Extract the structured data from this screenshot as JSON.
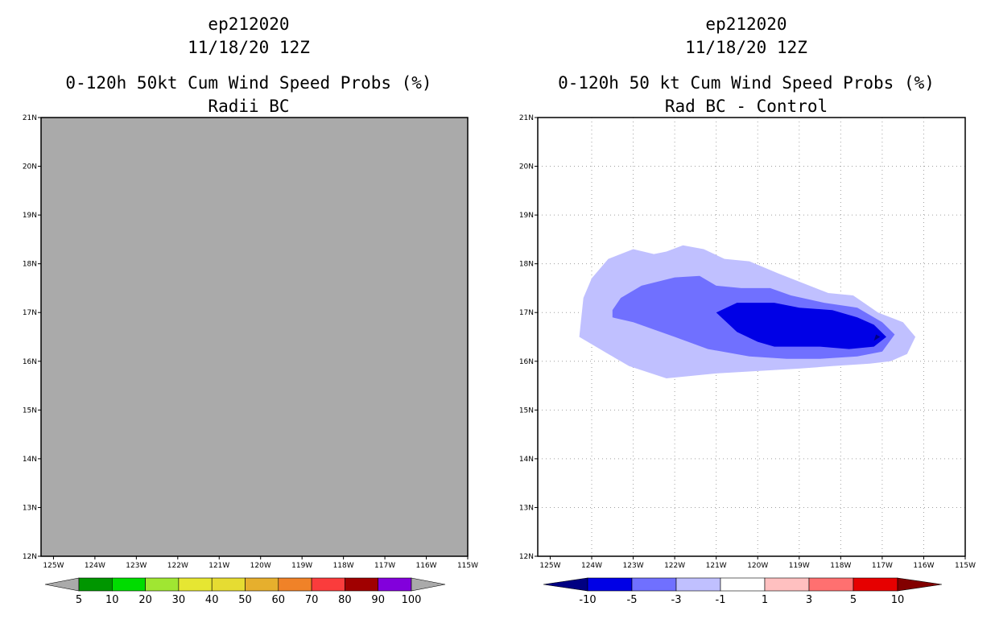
{
  "chart_data": [
    {
      "type": "heatmap",
      "title_lines": [
        "ep212020",
        "11/18/20 12Z",
        "0-120h 50kt Cum Wind Speed Probs (%)",
        "Radii BC"
      ],
      "field_color": "#aaaaaa",
      "xlim": [
        -125.3,
        -115
      ],
      "ylim": [
        12,
        21
      ],
      "x_ticks": [
        -125,
        -124,
        -123,
        -122,
        -121,
        -120,
        -119,
        -118,
        -117,
        -116,
        -115
      ],
      "x_tick_labels": [
        "125W",
        "124W",
        "123W",
        "122W",
        "121W",
        "120W",
        "119W",
        "118W",
        "117W",
        "116W",
        "115W"
      ],
      "y_ticks": [
        12,
        13,
        14,
        15,
        16,
        17,
        18,
        19,
        20,
        21
      ],
      "y_tick_labels": [
        "12N",
        "13N",
        "14N",
        "15N",
        "16N",
        "17N",
        "18N",
        "19N",
        "20N",
        "21N"
      ],
      "grid": false,
      "colorbar": {
        "levels": [
          "5",
          "10",
          "20",
          "30",
          "40",
          "50",
          "60",
          "70",
          "80",
          "90",
          "100"
        ],
        "colors": [
          "#aaaaaa",
          "#009600",
          "#00dc00",
          "#a0e632",
          "#e6e632",
          "#e6dc32",
          "#e6af2d",
          "#f08228",
          "#fa3c3c",
          "#a00000",
          "#8200dc",
          "#aaaaaa"
        ]
      }
    },
    {
      "type": "heatmap",
      "title_lines": [
        "ep212020",
        "11/18/20 12Z",
        "0-120h 50 kt Cum Wind Speed Probs (%)",
        "Rad BC - Control"
      ],
      "xlim": [
        -125.3,
        -115
      ],
      "ylim": [
        12,
        21
      ],
      "x_ticks": [
        -125,
        -124,
        -123,
        -122,
        -121,
        -120,
        -119,
        -118,
        -117,
        -116,
        -115
      ],
      "x_tick_labels": [
        "125W",
        "124W",
        "123W",
        "122W",
        "121W",
        "120W",
        "119W",
        "118W",
        "117W",
        "116W",
        "115W"
      ],
      "y_ticks": [
        12,
        13,
        14,
        15,
        16,
        17,
        18,
        19,
        20,
        21
      ],
      "y_tick_labels": [
        "12N",
        "13N",
        "14N",
        "15N",
        "16N",
        "17N",
        "18N",
        "19N",
        "20N",
        "21N"
      ],
      "grid": true,
      "contours": [
        {
          "range": "-3 to -1",
          "color": "#c0c0ff",
          "points": [
            [
              -124.3,
              16.5
            ],
            [
              -124.2,
              17.3
            ],
            [
              -124.0,
              17.7
            ],
            [
              -123.6,
              18.1
            ],
            [
              -123.0,
              18.3
            ],
            [
              -122.5,
              18.2
            ],
            [
              -122.2,
              18.25
            ],
            [
              -121.8,
              18.38
            ],
            [
              -121.3,
              18.3
            ],
            [
              -120.8,
              18.1
            ],
            [
              -120.2,
              18.05
            ],
            [
              -119.5,
              17.8
            ],
            [
              -118.9,
              17.6
            ],
            [
              -118.3,
              17.4
            ],
            [
              -117.7,
              17.35
            ],
            [
              -117.1,
              17.0
            ],
            [
              -116.5,
              16.8
            ],
            [
              -116.2,
              16.5
            ],
            [
              -116.4,
              16.15
            ],
            [
              -116.8,
              16.0
            ],
            [
              -117.3,
              15.95
            ],
            [
              -118.2,
              15.9
            ],
            [
              -119.0,
              15.85
            ],
            [
              -120.0,
              15.8
            ],
            [
              -121.0,
              15.75
            ],
            [
              -122.2,
              15.65
            ],
            [
              -123.1,
              15.9
            ],
            [
              -123.6,
              16.15
            ]
          ]
        },
        {
          "range": "-5 to -3",
          "color": "#7070ff",
          "points": [
            [
              -123.5,
              17.05
            ],
            [
              -123.3,
              17.3
            ],
            [
              -122.8,
              17.55
            ],
            [
              -122.0,
              17.72
            ],
            [
              -121.4,
              17.75
            ],
            [
              -121.0,
              17.55
            ],
            [
              -120.4,
              17.5
            ],
            [
              -119.7,
              17.5
            ],
            [
              -119.2,
              17.35
            ],
            [
              -118.4,
              17.2
            ],
            [
              -117.6,
              17.1
            ],
            [
              -117.0,
              16.8
            ],
            [
              -116.7,
              16.55
            ],
            [
              -117.0,
              16.2
            ],
            [
              -117.6,
              16.1
            ],
            [
              -118.5,
              16.05
            ],
            [
              -119.3,
              16.05
            ],
            [
              -120.2,
              16.1
            ],
            [
              -121.2,
              16.25
            ],
            [
              -122.0,
              16.5
            ],
            [
              -123.0,
              16.8
            ],
            [
              -123.5,
              16.9
            ]
          ]
        },
        {
          "range": "-10 to -5",
          "color": "#0000e6",
          "points": [
            [
              -121.0,
              17.0
            ],
            [
              -120.5,
              17.2
            ],
            [
              -119.6,
              17.2
            ],
            [
              -119.0,
              17.1
            ],
            [
              -118.2,
              17.05
            ],
            [
              -117.6,
              16.9
            ],
            [
              -117.2,
              16.75
            ],
            [
              -116.9,
              16.5
            ],
            [
              -117.2,
              16.3
            ],
            [
              -117.8,
              16.25
            ],
            [
              -118.5,
              16.3
            ],
            [
              -119.6,
              16.3
            ],
            [
              -120.0,
              16.4
            ],
            [
              -120.5,
              16.6
            ]
          ]
        },
        {
          "range": "< -10",
          "color": "#000082",
          "points": [
            [
              -117.05,
              16.5
            ],
            [
              -117.2,
              16.42
            ],
            [
              -117.15,
              16.55
            ]
          ]
        }
      ],
      "colorbar": {
        "levels": [
          "-10",
          "-5",
          "-3",
          "-1",
          "1",
          "3",
          "5",
          "10"
        ],
        "colors": [
          "#000082",
          "#0000e6",
          "#7070ff",
          "#c0c0ff",
          "#ffffff",
          "#ffc0c0",
          "#ff7070",
          "#e60000",
          "#820000"
        ]
      }
    }
  ]
}
